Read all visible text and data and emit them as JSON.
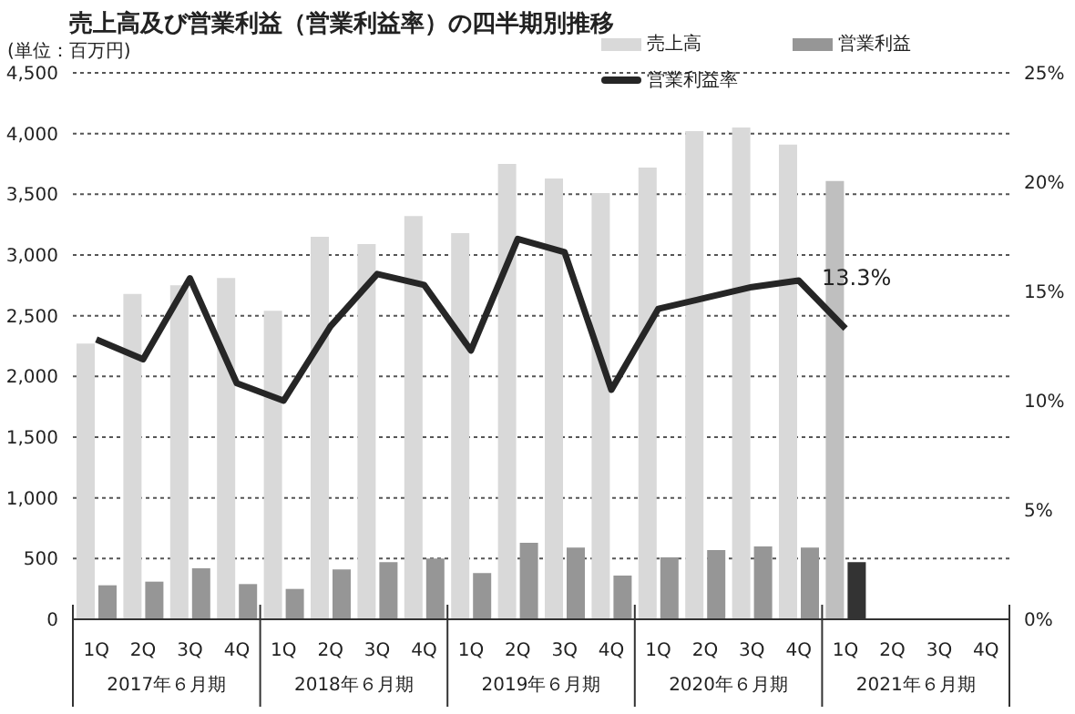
{
  "chart_data": {
    "type": "bar",
    "title": "売上高及び営業利益（営業利益率）の四半期別推移",
    "ylabel": "(単位：百万円)",
    "categories": [
      "1Q",
      "2Q",
      "3Q",
      "4Q",
      "1Q",
      "2Q",
      "3Q",
      "4Q",
      "1Q",
      "2Q",
      "3Q",
      "4Q",
      "1Q",
      "2Q",
      "3Q",
      "4Q",
      "1Q",
      "2Q",
      "3Q",
      "4Q"
    ],
    "annotations": [
      "2017年６月期",
      "2018年６月期",
      "2019年６月期",
      "2020年６月期",
      "2021年６月期"
    ],
    "series": [
      {
        "name": "売上高",
        "color": "#d9d9d9",
        "colors": [
          "#d9d9d9",
          "#d9d9d9",
          "#d9d9d9",
          "#d9d9d9",
          "#d9d9d9",
          "#d9d9d9",
          "#d9d9d9",
          "#d9d9d9",
          "#d9d9d9",
          "#d9d9d9",
          "#d9d9d9",
          "#d9d9d9",
          "#d9d9d9",
          "#d9d9d9",
          "#d9d9d9",
          "#d9d9d9",
          "#bfbfbf",
          "#bfbfbf",
          "#bfbfbf",
          "#bfbfbf"
        ],
        "values": [
          2270,
          2680,
          2750,
          2810,
          2540,
          3150,
          3090,
          3320,
          3180,
          3750,
          3630,
          3510,
          3720,
          4020,
          4050,
          3910,
          3610,
          null,
          null,
          null
        ]
      },
      {
        "name": "営業利益",
        "color": "#969696",
        "colors": [
          "#969696",
          "#969696",
          "#969696",
          "#969696",
          "#969696",
          "#969696",
          "#969696",
          "#969696",
          "#969696",
          "#969696",
          "#969696",
          "#969696",
          "#969696",
          "#969696",
          "#969696",
          "#969696",
          "#333333",
          "#333333",
          "#333333",
          "#333333"
        ],
        "values": [
          280,
          310,
          420,
          290,
          250,
          410,
          470,
          500,
          380,
          630,
          590,
          360,
          510,
          570,
          600,
          590,
          470,
          null,
          null,
          null
        ]
      },
      {
        "name": "営業利益率",
        "type": "line",
        "axis": "y2",
        "color": "#262626",
        "values": [
          12.8,
          11.9,
          15.6,
          10.8,
          10.0,
          13.4,
          15.8,
          15.3,
          12.3,
          17.4,
          16.8,
          10.5,
          14.2,
          14.7,
          15.2,
          15.5,
          13.3,
          null,
          null,
          null
        ],
        "value_labels": [
          null,
          null,
          null,
          null,
          null,
          null,
          null,
          null,
          null,
          null,
          null,
          null,
          null,
          null,
          null,
          null,
          "13.3%",
          null,
          null,
          null
        ]
      }
    ],
    "ylim": [
      0,
      4500
    ],
    "yticks": [
      {
        "value": 0,
        "label": "0"
      },
      {
        "value": 500,
        "label": "500"
      },
      {
        "value": 1000,
        "label": "1,000"
      },
      {
        "value": 1500,
        "label": "1,500"
      },
      {
        "value": 2000,
        "label": "2,000"
      },
      {
        "value": 2500,
        "label": "2,500"
      },
      {
        "value": 3000,
        "label": "3,000"
      },
      {
        "value": 3500,
        "label": "3,500"
      },
      {
        "value": 4000,
        "label": "4,000"
      },
      {
        "value": 4500,
        "label": "4,500"
      }
    ],
    "y2lim": [
      0,
      25
    ],
    "y2ticks": [
      {
        "value": 0,
        "label": "0%"
      },
      {
        "value": 5,
        "label": "5%"
      },
      {
        "value": 10,
        "label": "10%"
      },
      {
        "value": 15,
        "label": "15%"
      },
      {
        "value": 20,
        "label": "20%"
      },
      {
        "value": 25,
        "label": "25%"
      }
    ],
    "grid": "y",
    "legend": "top right",
    "marker": "none",
    "line_style": "solid"
  }
}
